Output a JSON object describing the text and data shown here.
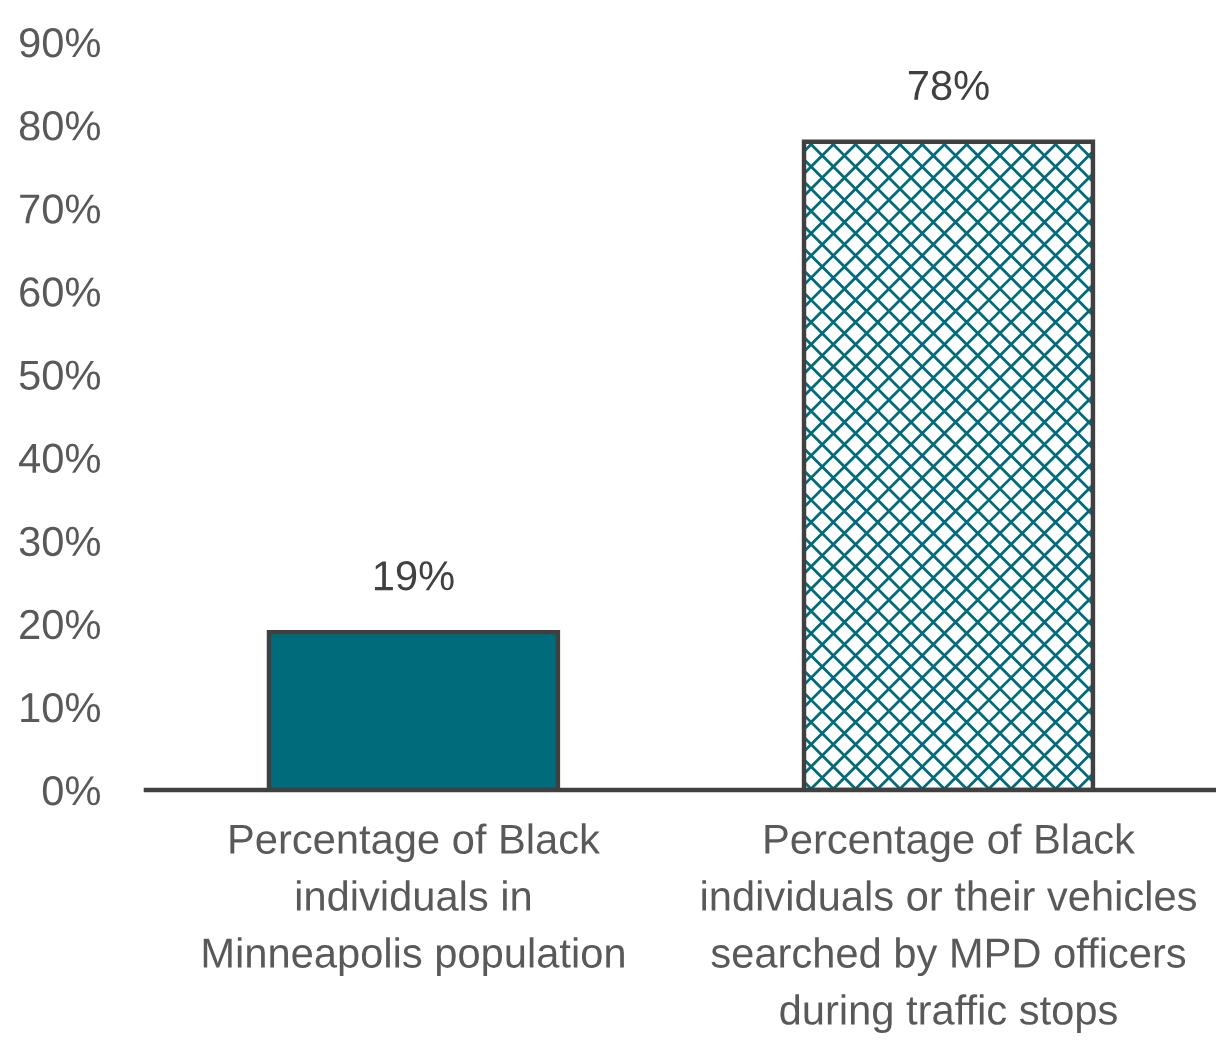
{
  "chart_data": {
    "type": "bar",
    "categories": [
      "Percentage of Black\nindividuals in\nMinneapolis population",
      "Percentage of Black\nindividuals or their vehicles\nsearched by MPD officers\nduring traffic stops"
    ],
    "values": [
      19,
      78
    ],
    "colors": [
      "#006b7a",
      "#006b7a"
    ],
    "value_labels": [
      "19%",
      "78%"
    ],
    "ylim": [
      0,
      90
    ],
    "yticks": [
      {
        "value": 0,
        "label": "0%"
      },
      {
        "value": 10,
        "label": "10%"
      },
      {
        "value": 20,
        "label": "20%"
      },
      {
        "value": 30,
        "label": "30%"
      },
      {
        "value": 40,
        "label": "40%"
      },
      {
        "value": 50,
        "label": "50%"
      },
      {
        "value": 60,
        "label": "60%"
      },
      {
        "value": 70,
        "label": "70%"
      },
      {
        "value": 80,
        "label": "80%"
      },
      {
        "value": 90,
        "label": "90%"
      }
    ]
  }
}
